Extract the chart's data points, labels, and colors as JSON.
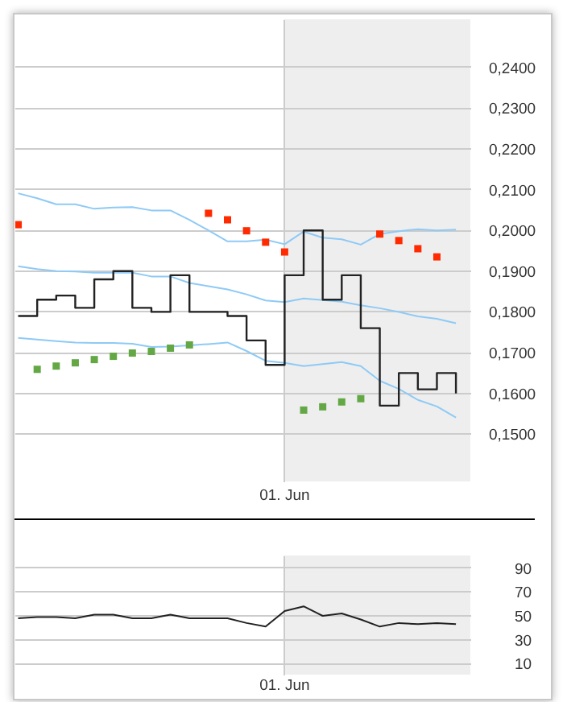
{
  "chart_data": [
    {
      "type": "step",
      "categories": [
        null,
        null,
        null,
        null,
        null,
        null,
        null,
        null,
        null,
        null,
        null,
        null,
        null,
        null,
        "01. Jun",
        null,
        null,
        null,
        null,
        null,
        null,
        null,
        null,
        null
      ],
      "series": [
        {
          "type": "line",
          "color": "#8ecaf6",
          "values": [
            0.2091,
            0.2079,
            0.2064,
            0.2064,
            0.2053,
            0.2056,
            0.2057,
            0.2049,
            0.2049,
            0.2026,
            0.2,
            0.1973,
            0.1973,
            0.1977,
            0.1966,
            0.1997,
            0.1982,
            0.1978,
            0.1965,
            0.1991,
            0.1998,
            0.2003,
            0.2,
            0.2002
          ]
        },
        {
          "type": "line",
          "color": "#8ecaf6",
          "values": [
            0.1912,
            0.1905,
            0.19,
            0.1899,
            0.1896,
            0.1896,
            0.1896,
            0.1887,
            0.1887,
            0.1871,
            0.1863,
            0.1855,
            0.1843,
            0.1828,
            0.1824,
            0.1833,
            0.1829,
            0.1825,
            0.1816,
            0.1809,
            0.18,
            0.1789,
            0.1783,
            0.1772
          ]
        },
        {
          "type": "line",
          "color": "#8ecaf6",
          "values": [
            0.1736,
            0.1732,
            0.1728,
            0.1725,
            0.1724,
            0.1724,
            0.1722,
            0.1714,
            0.1715,
            0.1718,
            0.1721,
            0.1725,
            0.1704,
            0.168,
            0.1675,
            0.1667,
            0.1672,
            0.1677,
            0.1667,
            0.1631,
            0.1611,
            0.1584,
            0.1568,
            0.1541
          ]
        },
        {
          "type": "step",
          "color": "#222222",
          "values": [
            0.179,
            0.183,
            0.184,
            0.181,
            0.188,
            0.19,
            0.181,
            0.18,
            0.189,
            0.18,
            0.18,
            0.179,
            0.173,
            0.167,
            0.189,
            0.2,
            0.183,
            0.189,
            0.176,
            0.157,
            0.165,
            0.161,
            0.165,
            0.16
          ]
        },
        {
          "type": "scatter",
          "marker": "square",
          "color": "#ff2a00",
          "values": [
            0.2014,
            null,
            null,
            null,
            null,
            null,
            null,
            null,
            null,
            null,
            0.2042,
            0.2026,
            0.1999,
            0.1971,
            0.1947,
            null,
            null,
            null,
            null,
            0.1991,
            0.1975,
            0.1955,
            0.1935,
            null
          ]
        },
        {
          "type": "scatter",
          "marker": "square",
          "color": "#63a844",
          "values": [
            null,
            0.1659,
            0.1667,
            0.1675,
            0.1683,
            0.1691,
            0.1699,
            0.1703,
            0.1711,
            0.1719,
            null,
            null,
            null,
            null,
            null,
            0.1559,
            0.1567,
            0.1579,
            0.1587,
            null,
            null,
            null,
            null,
            null
          ]
        }
      ],
      "ylim": [
        0.1382,
        0.2516
      ],
      "yticks": [
        {
          "value": 0.15,
          "label": "0,1500"
        },
        {
          "value": 0.16,
          "label": "0,1600"
        },
        {
          "value": 0.17,
          "label": "0,1700"
        },
        {
          "value": 0.18,
          "label": "0,1800"
        },
        {
          "value": 0.19,
          "label": "0,1900"
        },
        {
          "value": 0.2,
          "label": "0,2000"
        },
        {
          "value": 0.21,
          "label": "0,2100"
        },
        {
          "value": 0.22,
          "label": "0,2200"
        },
        {
          "value": 0.23,
          "label": "0,2300"
        },
        {
          "value": 0.24,
          "label": "0,2400"
        }
      ],
      "grid": true
    },
    {
      "type": "line",
      "color": "#222222",
      "categories": [
        null,
        null,
        null,
        null,
        null,
        null,
        null,
        null,
        null,
        null,
        null,
        null,
        null,
        null,
        "01. Jun",
        null,
        null,
        null,
        null,
        null,
        null,
        null,
        null,
        null
      ],
      "values": [
        48,
        49,
        49,
        48,
        51,
        51,
        48,
        48,
        51,
        48,
        48,
        48,
        44,
        41,
        54,
        58,
        50,
        52,
        47,
        41,
        44,
        43,
        44,
        43
      ],
      "ylim": [
        0,
        100
      ],
      "yticks": [
        10,
        30,
        50,
        70,
        90
      ],
      "grid": true
    }
  ]
}
